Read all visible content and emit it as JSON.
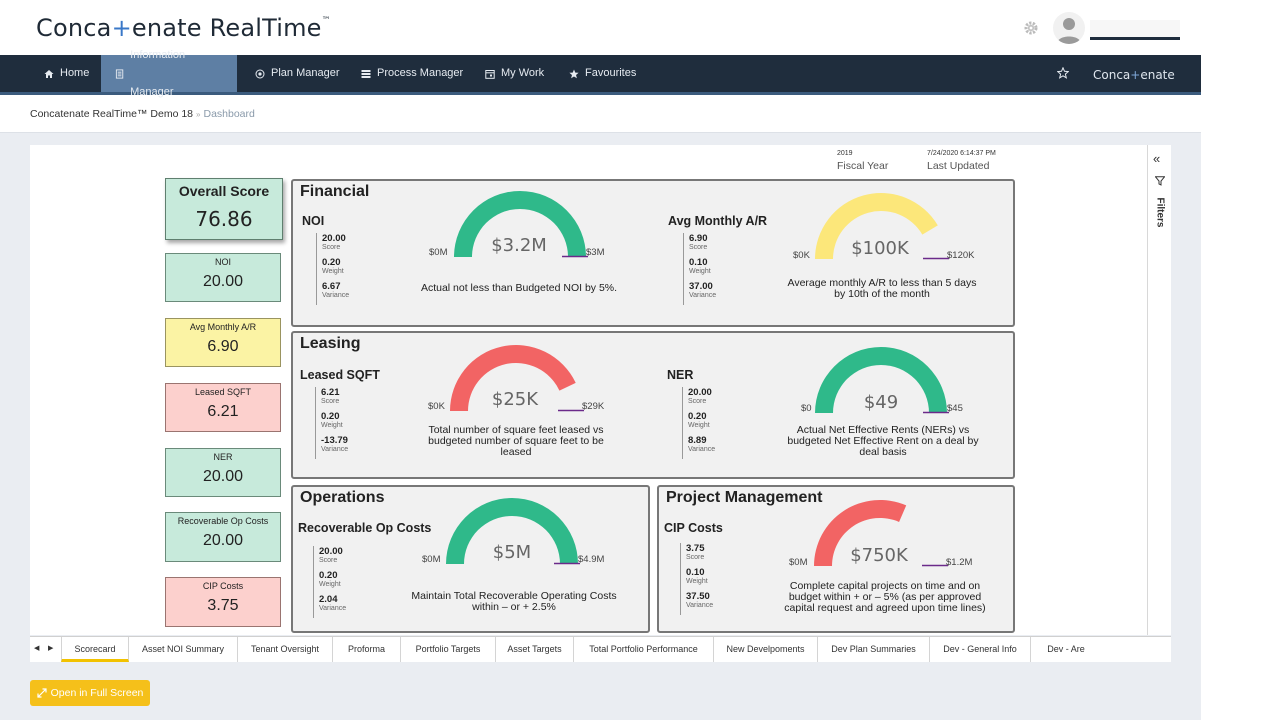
{
  "header": {
    "logo_part1": "Conca",
    "logo_plus": "+",
    "logo_part2": "enate RealTime",
    "logo_tm": "™"
  },
  "nav": {
    "items": [
      {
        "label": "Home",
        "icon": "home-icon"
      },
      {
        "label": "Information Manager",
        "icon": "document-icon"
      },
      {
        "label": "Plan Manager",
        "icon": "target-icon"
      },
      {
        "label": "Process Manager",
        "icon": "list-icon"
      },
      {
        "label": "My Work",
        "icon": "calendar-icon"
      },
      {
        "label": "Favourites",
        "icon": "star-icon"
      }
    ],
    "active": "Information Manager",
    "brand_part1": "Conca",
    "brand_plus": "+",
    "brand_part2": "enate"
  },
  "breadcrumb": {
    "root": "Concatenate RealTime™ Demo 18",
    "separator": "»",
    "current": "Dashboard"
  },
  "meta": {
    "fiscal_year_value": "2019",
    "fiscal_year_label": "Fiscal Year",
    "last_updated_value": "7/24/2020 6:14:37 PM",
    "last_updated_label": "Last Updated"
  },
  "filters_label": "Filters",
  "scores": {
    "overall": {
      "label": "Overall Score",
      "value": "76.86"
    },
    "tiles": [
      {
        "label": "NOI",
        "value": "20.00",
        "status": "green"
      },
      {
        "label": "Avg Monthly A/R",
        "value": "6.90",
        "status": "yellow"
      },
      {
        "label": "Leased SQFT",
        "value": "6.21",
        "status": "red"
      },
      {
        "label": "NER",
        "value": "20.00",
        "status": "green"
      },
      {
        "label": "Recoverable Op Costs",
        "value": "20.00",
        "status": "green"
      },
      {
        "label": "CIP Costs",
        "value": "3.75",
        "status": "red"
      }
    ]
  },
  "stat_labels": {
    "score": "Score",
    "weight": "Weight",
    "variance": "Variance"
  },
  "panels": {
    "financial": {
      "title": "Financial"
    },
    "leasing": {
      "title": "Leasing"
    },
    "operations": {
      "title": "Operations"
    },
    "project": {
      "title": "Project Management"
    }
  },
  "kpis": {
    "noi": {
      "name": "NOI",
      "score": "20.00",
      "weight": "0.20",
      "variance": "6.67",
      "min": "$0M",
      "max": "$3M",
      "value": "$3.2M",
      "fill": 1.0,
      "color": "#2fb98a",
      "desc": "Actual not less than Budgeted NOI by 5%."
    },
    "ar": {
      "name": "Avg Monthly A/R",
      "score": "6.90",
      "weight": "0.10",
      "variance": "37.00",
      "min": "$0K",
      "max": "$120K",
      "value": "$100K",
      "fill": 0.83,
      "color": "#fce77a",
      "desc1": "Average monthly A/R to less than 5 days",
      "desc2": "by 10th of the month"
    },
    "sqft": {
      "name": "Leased SQFT",
      "score": "6.21",
      "weight": "0.20",
      "variance": "-13.79",
      "min": "$0K",
      "max": "$29K",
      "value": "$25K",
      "fill": 0.86,
      "color": "#f26464",
      "desc1": "Total number of square feet leased vs",
      "desc2": "budgeted number of square feet to be",
      "desc3": "leased"
    },
    "ner": {
      "name": "NER",
      "score": "20.00",
      "weight": "0.20",
      "variance": "8.89",
      "min": "$0",
      "max": "$45",
      "value": "$49",
      "fill": 1.0,
      "color": "#2fb98a",
      "desc1": "Actual Net Effective Rents (NERs) vs",
      "desc2": "budgeted Net Effective Rent on a deal by",
      "desc3": "deal basis"
    },
    "opcosts": {
      "name": "Recoverable Op Costs",
      "score": "20.00",
      "weight": "0.20",
      "variance": "2.04",
      "min": "$0M",
      "max": "$4.9M",
      "value": "$5M",
      "fill": 1.0,
      "color": "#2fb98a",
      "desc1": "Maintain Total Recoverable Operating Costs",
      "desc2": "within – or + 2.5%"
    },
    "cip": {
      "name": "CIP Costs",
      "score": "3.75",
      "weight": "0.10",
      "variance": "37.50",
      "min": "$0M",
      "max": "$1.2M",
      "value": "$750K",
      "fill": 0.63,
      "color": "#f26464",
      "desc1": "Complete capital projects on time and on",
      "desc2": "budget within + or – 5% (as per approved",
      "desc3": "capital request and agreed upon time lines)"
    }
  },
  "tabs": [
    "Scorecard",
    "Asset NOI Summary",
    "Tenant Oversight",
    "Proforma",
    "Portfolio Targets",
    "Asset Targets",
    "Total Portfolio Performance",
    "New Develpoments",
    "Dev Plan Summaries",
    "Dev - General Info",
    "Dev - Are"
  ],
  "fullscreen_label": "Open in Full Screen",
  "colors": {
    "navbar": "#1f2d3d",
    "active_nav": "#5e7fa4",
    "accent": "#f5c01a",
    "good": "#2fb98a",
    "warn": "#fce77a",
    "bad": "#f26464"
  }
}
